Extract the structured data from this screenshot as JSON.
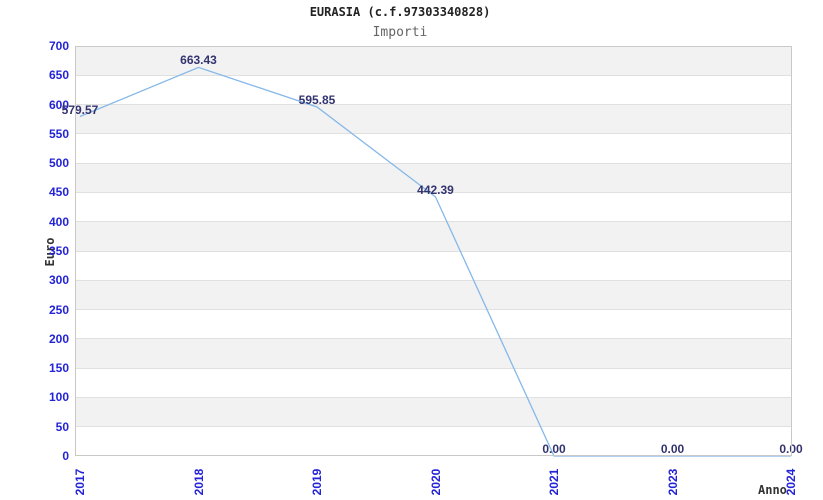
{
  "chart_data": {
    "type": "line",
    "title": "EURASIA (c.f.97303340828)",
    "subtitle": "Importi",
    "xlabel": "Anno",
    "ylabel": "Euro",
    "categories": [
      "2017",
      "2018",
      "2019",
      "2020",
      "2021",
      "2023",
      "2024"
    ],
    "values": [
      579.57,
      663.43,
      595.85,
      442.39,
      0.0,
      0.0,
      0.0
    ],
    "value_labels": [
      "579.57",
      "663.43",
      "595.85",
      "442.39",
      "0.00",
      "0.00",
      "0.00"
    ],
    "ylim": [
      0,
      700
    ],
    "ytick_step": 50,
    "grid": "horizontal-bands",
    "legend": "none"
  },
  "colors": {
    "background": "#ffffff",
    "line": "#85b8e8",
    "tick_label": "#2323d7",
    "value_label": "#333370",
    "band": "#f2f2f2",
    "gridline": "#e0e0e0",
    "axis_border": "#c9c9c9",
    "title": "#222222",
    "subtitle": "#666666",
    "axis_name": "#333333"
  }
}
